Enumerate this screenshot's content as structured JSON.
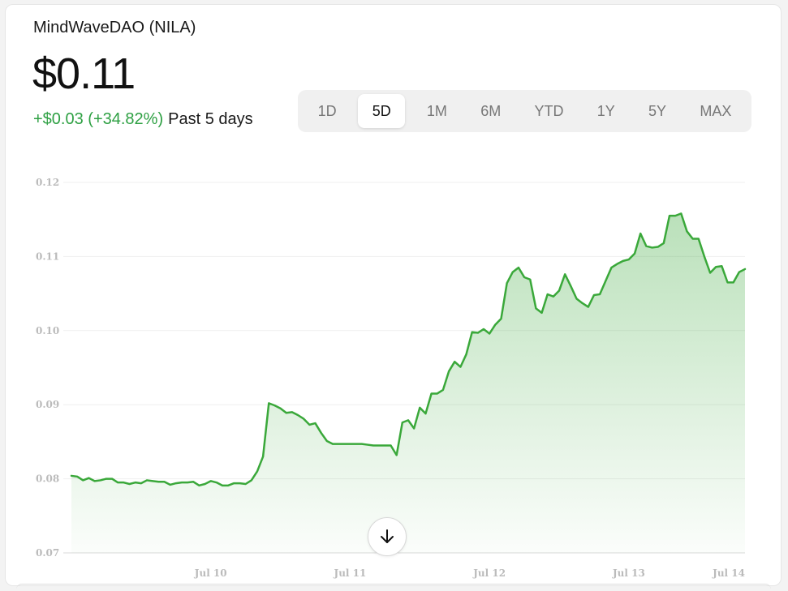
{
  "header": {
    "name": "MindWaveDAO (NILA)",
    "price": "$0.11",
    "change": "+$0.03 (+34.82%)",
    "period": "Past 5 days"
  },
  "ranges": [
    "1D",
    "5D",
    "1M",
    "6M",
    "YTD",
    "1Y",
    "5Y",
    "MAX"
  ],
  "active_range": "5D",
  "colors": {
    "line": "#3aa83a",
    "fill": "#3aa83a",
    "positive": "#2ea043"
  },
  "chart_data": {
    "type": "area",
    "ylim": [
      0.07,
      0.12
    ],
    "yticks": [
      "0.12",
      "0.11",
      "0.10",
      "0.09",
      "0.08",
      "0.07"
    ],
    "ytick_values": [
      0.12,
      0.11,
      0.1,
      0.09,
      0.08,
      0.07
    ],
    "xticks": [
      "Jul 10",
      "Jul 11",
      "Jul 12",
      "Jul 13",
      "Jul 14"
    ],
    "x_start": "Jul 9",
    "x_step": "1 hour",
    "grid": true,
    "series": [
      {
        "values": [
          0.0804,
          0.0803,
          0.0798,
          0.0801,
          0.0797,
          0.0798,
          0.08,
          0.08,
          0.0795,
          0.0795,
          0.0793,
          0.0795,
          0.0794,
          0.0798,
          0.0797,
          0.0796,
          0.0796,
          0.0792,
          0.0794,
          0.0795,
          0.0795,
          0.0796,
          0.0791,
          0.0793,
          0.0797,
          0.0795,
          0.0791,
          0.0791,
          0.0794,
          0.0794,
          0.0793,
          0.0798,
          0.081,
          0.083,
          0.0902,
          0.0899,
          0.0895,
          0.0889,
          0.089,
          0.0886,
          0.0881,
          0.0873,
          0.0875,
          0.0862,
          0.0851,
          0.0847,
          0.0847,
          0.0847,
          0.0847,
          0.0847,
          0.0847,
          0.0846,
          0.0845,
          0.0845,
          0.0845,
          0.0845,
          0.0832,
          0.0876,
          0.0879,
          0.0868,
          0.0896,
          0.0888,
          0.0915,
          0.0915,
          0.092,
          0.0945,
          0.0958,
          0.0951,
          0.0968,
          0.0998,
          0.0997,
          0.1002,
          0.0996,
          0.1008,
          0.1016,
          0.1064,
          0.1079,
          0.1085,
          0.1072,
          0.1069,
          0.103,
          0.1024,
          0.1049,
          0.1046,
          0.1054,
          0.1076,
          0.106,
          0.1043,
          0.1037,
          0.1032,
          0.1048,
          0.1049,
          0.1067,
          0.1085,
          0.109,
          0.1094,
          0.1096,
          0.1104,
          0.1131,
          0.1114,
          0.1112,
          0.1113,
          0.1118,
          0.1155,
          0.1155,
          0.1158,
          0.1134,
          0.1124,
          0.1124,
          0.11,
          0.1078,
          0.1086,
          0.1087,
          0.1065,
          0.1065,
          0.1079,
          0.1083
        ]
      }
    ]
  }
}
